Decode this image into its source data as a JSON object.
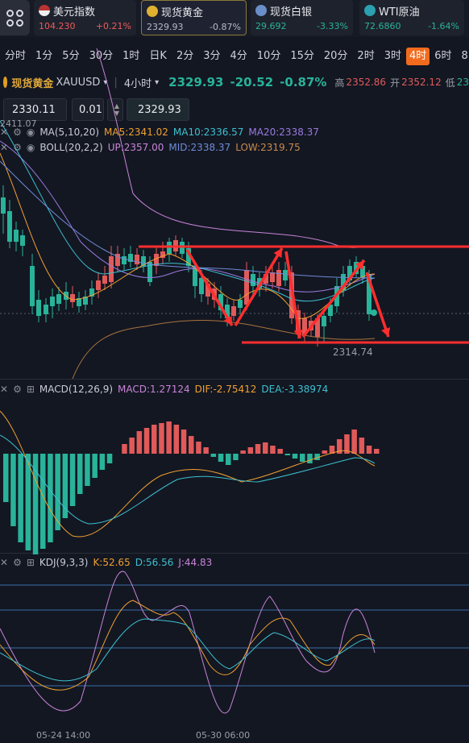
{
  "tickers": [
    {
      "name": "美元指数",
      "price": "104.230",
      "change": "+0.21%",
      "dir": "up",
      "icon": "us-flag-icon"
    },
    {
      "name": "现货黄金",
      "price": "2329.93",
      "change": "-0.87%",
      "dir": "down",
      "icon": "gold-coin-icon",
      "active": true
    },
    {
      "name": "现货白银",
      "price": "29.692",
      "change": "-3.33%",
      "dir": "down",
      "icon": "silver-coin-icon"
    },
    {
      "name": "WTI原油",
      "price": "72.6860",
      "change": "-1.64%",
      "dir": "down",
      "icon": "oil-drop-icon"
    }
  ],
  "timeframes": [
    "分时",
    "1分",
    "5分",
    "30分",
    "1时",
    "日K",
    "2分",
    "3分",
    "4分",
    "10分",
    "15分",
    "20分",
    "2时",
    "3时",
    "4时",
    "6时",
    "8"
  ],
  "selected_timeframe": "4时",
  "symbol": {
    "name": "现货黄金",
    "code": "XAUUSD",
    "dropdown": "▾",
    "period": "4小时",
    "period_dropdown": "▾",
    "price": "2329.93",
    "change": "-20.52",
    "change_pct": "-0.87%",
    "high_label": "高",
    "high": "2352.86",
    "open_label": "开",
    "open": "2352.12",
    "low_label": "低",
    "low": "23"
  },
  "order": {
    "sell_price": "2330.11",
    "lot": "0.01",
    "buy_price": "2329.93"
  },
  "main_chart": {
    "high_marker": "2411.07",
    "low_marker": "2314.74",
    "ma_label": "MA(5,10,20)",
    "ma5": "MA5:2341.02",
    "ma10": "MA10:2336.57",
    "ma20": "MA20:2338.37",
    "boll_label": "BOLL(20,2,2)",
    "up": "UP:2357.00",
    "mid": "MID:2338.37",
    "low": "LOW:2319.75",
    "colors": {
      "up": "#28b39a",
      "down": "#e05a5a",
      "ma5": "#f0a030",
      "ma10": "#3cc0d0",
      "ma20": "#9a7ae0",
      "boll_up": "#c884d8",
      "boll_mid": "#6f8bd6",
      "boll_low": "#a8743c",
      "annot": "#ff2e2e"
    }
  },
  "macd": {
    "label": "MACD(12,26,9)",
    "macd": "MACD:1.27124",
    "dif": "DIF:-2.75412",
    "dea": "DEA:-3.38974"
  },
  "kdj": {
    "label": "KDJ(9,3,3)",
    "k": "K:52.65",
    "d": "D:56.56",
    "j": "J:44.83"
  },
  "x_axis": [
    "05-24 14:00",
    "05-30 06:00"
  ]
}
